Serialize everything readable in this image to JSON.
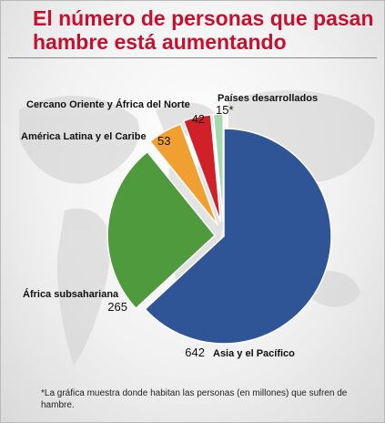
{
  "title": "El número de personas que pasan hambre está aumentando",
  "footnote": "*La gráfica muestra donde habitan las personas (en millones) que sufren de hambre.",
  "chart_data": {
    "type": "pie",
    "title": "El número de personas que pasan hambre está aumentando",
    "slices": [
      {
        "label": "Asia y el Pacífico",
        "value": 642,
        "value_label": "642",
        "color": "#2f5597"
      },
      {
        "label": "África subsahariana",
        "value": 265,
        "value_label": "265",
        "color": "#4e9a3c"
      },
      {
        "label": "América Latina y el Caribe",
        "value": 53,
        "value_label": "53",
        "color": "#f0a030"
      },
      {
        "label": "Cercano Oriente y África del Norte",
        "value": 42,
        "value_label": "42",
        "color": "#d02028"
      },
      {
        "label": "Países desarrollados",
        "value": 15,
        "value_label": "15*",
        "color": "#a8d8b0"
      }
    ]
  }
}
